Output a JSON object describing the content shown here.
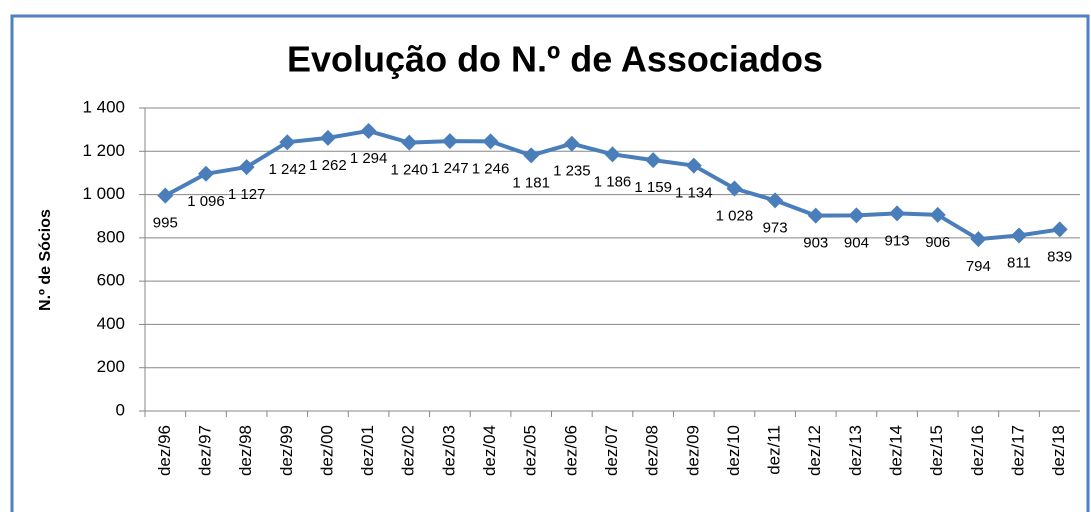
{
  "chart_data": {
    "type": "line",
    "title": "Evolução do N.º de Associados",
    "y_label": "N.º de Sócios",
    "categories": [
      "dez/96",
      "dez/97",
      "dez/98",
      "dez/99",
      "dez/00",
      "dez/01",
      "dez/02",
      "dez/03",
      "dez/04",
      "dez/05",
      "dez/06",
      "dez/07",
      "dez/08",
      "dez/09",
      "dez/10",
      "dez/11",
      "dez/12",
      "dez/13",
      "dez/14",
      "dez/15",
      "dez/16",
      "dez/17",
      "dez/18"
    ],
    "values": [
      995,
      1096,
      1127,
      1242,
      1262,
      1294,
      1240,
      1247,
      1246,
      1181,
      1235,
      1186,
      1159,
      1134,
      1028,
      973,
      903,
      904,
      913,
      906,
      794,
      811,
      839
    ],
    "value_labels": [
      "995",
      "1 096",
      "1 127",
      "1 242",
      "1 262",
      "1 294",
      "1 240",
      "1 247",
      "1 246",
      "1 181",
      "1 235",
      "1 186",
      "1 159",
      "1 134",
      "1 028",
      "973",
      "903",
      "904",
      "913",
      "906",
      "794",
      "811",
      "839"
    ],
    "color": "#4a7ebb",
    "ylim": [
      0,
      1400
    ],
    "yticks": [
      0,
      200,
      400,
      600,
      800,
      {
        "value": 1000,
        "label": "1 000"
      },
      {
        "value": 1200,
        "label": "1 200"
      },
      {
        "value": 1400,
        "label": "1 400"
      }
    ],
    "grid": true
  }
}
